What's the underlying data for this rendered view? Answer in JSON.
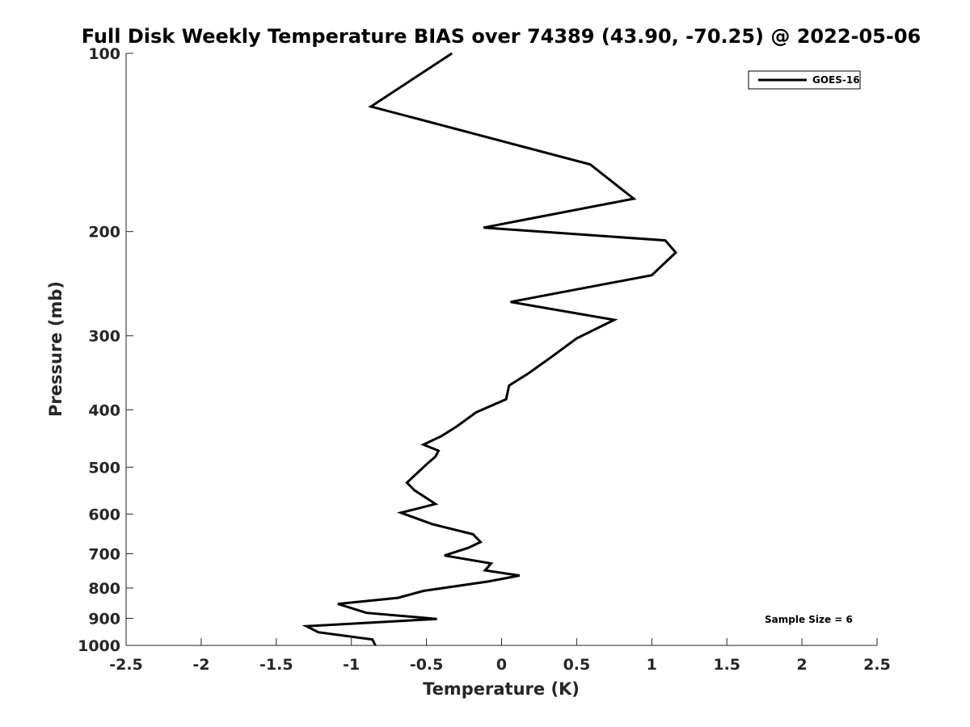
{
  "chart_data": {
    "type": "line",
    "title": "Full Disk Weekly Temperature BIAS over 74389 (43.90, -70.25) @ 2022-05-06",
    "xlabel": "Temperature (K)",
    "ylabel": "Pressure (mb)",
    "xlim": [
      -2.5,
      2.5
    ],
    "ylim": [
      100,
      1000
    ],
    "yscale": "log",
    "y_reversed": true,
    "grid": false,
    "legend_position": "top-right",
    "x_ticks": [
      -2.5,
      -2,
      -1.5,
      -1,
      -0.5,
      0,
      0.5,
      1,
      1.5,
      2,
      2.5
    ],
    "x_tick_labels": [
      "-2.5",
      "-2",
      "-1.5",
      "-1",
      "-0.5",
      "0",
      "0.5",
      "1",
      "1.5",
      "2",
      "2.5"
    ],
    "y_ticks": [
      100,
      200,
      300,
      400,
      500,
      600,
      700,
      800,
      900,
      1000
    ],
    "y_tick_labels": [
      "100",
      "200",
      "300",
      "400",
      "500",
      "600",
      "700",
      "800",
      "900",
      "1000"
    ],
    "series": [
      {
        "name": "GOES-16",
        "color": "#000000",
        "x": [
          -0.33,
          -0.87,
          0.59,
          0.88,
          -0.12,
          1.09,
          1.16,
          1.0,
          0.06,
          0.75,
          0.5,
          0.33,
          0.18,
          0.05,
          0.03,
          -0.17,
          -0.3,
          -0.4,
          -0.52,
          -0.42,
          -0.44,
          -0.49,
          -0.63,
          -0.58,
          -0.44,
          -0.67,
          -0.46,
          -0.19,
          -0.14,
          -0.22,
          -0.38,
          -0.07,
          -0.11,
          0.12,
          -0.09,
          -0.52,
          -0.69,
          -1.09,
          -0.9,
          -0.43,
          -1.3,
          -1.22,
          -0.86,
          -0.84
        ],
        "y": [
          100,
          123,
          154,
          176,
          197,
          207,
          217,
          237,
          263,
          282,
          303,
          326,
          347,
          364,
          384,
          404,
          427,
          443,
          458,
          469,
          480,
          492,
          531,
          547,
          577,
          597,
          624,
          649,
          669,
          684,
          705,
          727,
          747,
          762,
          780,
          809,
          831,
          851,
          881,
          902,
          928,
          950,
          977,
          1000
        ]
      }
    ],
    "annotations": [
      "Sample Size = 6"
    ]
  }
}
